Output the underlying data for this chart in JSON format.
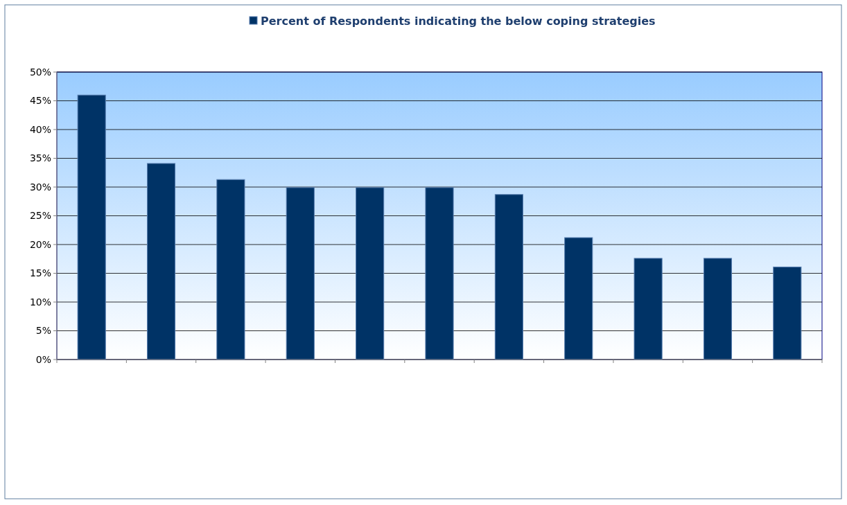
{
  "chart_data": {
    "type": "bar",
    "categories": [
      null,
      null,
      null,
      null,
      null,
      null,
      null,
      null,
      null,
      null,
      null
    ],
    "series": [
      {
        "name": "Percent of Respondents indicating the below coping strategies",
        "color": "#003366",
        "values": [
          46,
          34.1,
          31.3,
          29.9,
          29.9,
          29.9,
          28.7,
          21.2,
          17.6,
          17.6,
          16.1
        ]
      }
    ],
    "ylim": [
      0,
      50
    ],
    "yticks": [
      {
        "value": 0,
        "label": "0%"
      },
      {
        "value": 5,
        "label": "5%"
      },
      {
        "value": 10,
        "label": "10%"
      },
      {
        "value": 15,
        "label": "15%"
      },
      {
        "value": 20,
        "label": "20%"
      },
      {
        "value": 25,
        "label": "25%"
      },
      {
        "value": 30,
        "label": "30%"
      },
      {
        "value": 35,
        "label": "35%"
      },
      {
        "value": 40,
        "label": "40%"
      },
      {
        "value": 45,
        "label": "45%"
      },
      {
        "value": 50,
        "label": "50%"
      }
    ],
    "grid": "y",
    "legend": "top"
  }
}
